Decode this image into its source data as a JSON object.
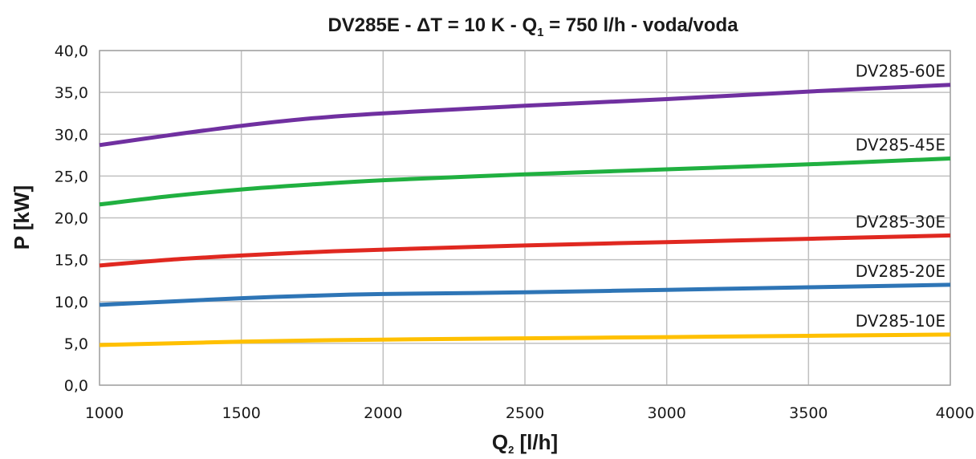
{
  "chart_data": {
    "type": "line",
    "title": {
      "main": "DV285E - ΔT = 10 K - Q",
      "sub": "1",
      "rest": " = 750 l/h - voda/voda"
    },
    "xlabel": {
      "main": "Q",
      "sub": "2",
      "rest": " [l/h]"
    },
    "ylabel": "P [kW]",
    "xlim": [
      1000,
      4000
    ],
    "ylim": [
      0,
      40
    ],
    "x_ticks": [
      1000,
      1500,
      2000,
      2500,
      3000,
      3500,
      4000
    ],
    "x_tick_labels": [
      "1000",
      "1500",
      "2000",
      "2500",
      "3000",
      "3500",
      "4000"
    ],
    "y_ticks": [
      0,
      5,
      10,
      15,
      20,
      25,
      30,
      35,
      40
    ],
    "y_tick_labels": [
      "0,0",
      "5,0",
      "10,0",
      "15,0",
      "20,0",
      "25,0",
      "30,0",
      "35,0",
      "40,0"
    ],
    "grid": true,
    "series": [
      {
        "name": "DV285-60E",
        "color": "#7030a0",
        "x": [
          1000,
          1250,
          1500,
          1750,
          2000,
          2500,
          3000,
          3500,
          4000
        ],
        "y": [
          28.7,
          29.9,
          31.0,
          31.9,
          32.5,
          33.4,
          34.2,
          35.1,
          35.9
        ]
      },
      {
        "name": "DV285-45E",
        "color": "#20b040",
        "x": [
          1000,
          1250,
          1500,
          1750,
          2000,
          2500,
          3000,
          3500,
          4000
        ],
        "y": [
          21.6,
          22.6,
          23.4,
          24.0,
          24.5,
          25.2,
          25.8,
          26.4,
          27.1
        ]
      },
      {
        "name": "DV285-30E",
        "color": "#e02820",
        "x": [
          1000,
          1250,
          1500,
          1750,
          2000,
          2500,
          3000,
          3500,
          4000
        ],
        "y": [
          14.3,
          15.0,
          15.5,
          15.9,
          16.2,
          16.7,
          17.1,
          17.5,
          17.9
        ]
      },
      {
        "name": "DV285-20E",
        "color": "#2e75b6",
        "x": [
          1000,
          1250,
          1500,
          1750,
          2000,
          2500,
          3000,
          3500,
          4000
        ],
        "y": [
          9.6,
          10.0,
          10.4,
          10.7,
          10.9,
          11.1,
          11.4,
          11.7,
          12.0
        ]
      },
      {
        "name": "DV285-10E",
        "color": "#ffc000",
        "x": [
          1000,
          1250,
          1500,
          1750,
          2000,
          2500,
          3000,
          3500,
          4000
        ],
        "y": [
          4.8,
          5.0,
          5.2,
          5.35,
          5.45,
          5.6,
          5.75,
          5.9,
          6.05
        ]
      }
    ]
  }
}
